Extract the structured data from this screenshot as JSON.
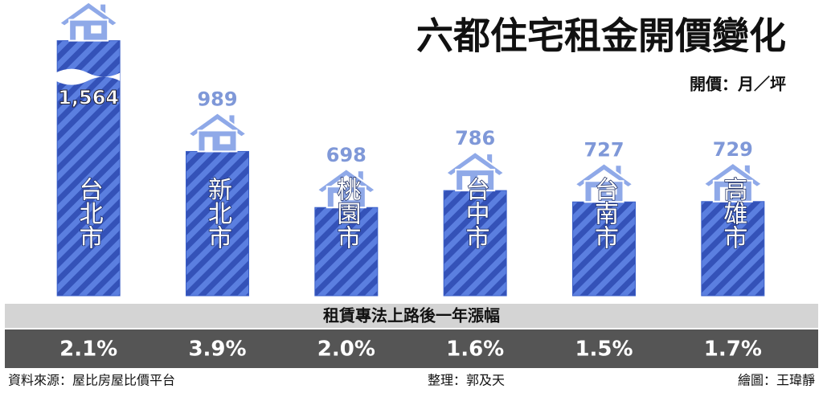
{
  "chart_data": {
    "type": "bar",
    "title": "六都住宅租金開價變化",
    "unit_note": "開價：月／坪",
    "categories": [
      "台北市",
      "新北市",
      "桃園市",
      "台中市",
      "台南市",
      "高雄市"
    ],
    "values": [
      1564,
      989,
      698,
      786,
      727,
      729
    ],
    "value_labels": [
      "1,564",
      "989",
      "698",
      "786",
      "727",
      "729"
    ],
    "color": "#3a5fc8",
    "ylim": [
      240,
      1700
    ],
    "growth": {
      "title": "租賃專法上路後一年漲幅",
      "values": [
        2.1,
        3.9,
        2.0,
        1.6,
        1.5,
        1.7
      ],
      "value_labels": [
        "2.1%",
        "3.9%",
        "2.0%",
        "1.6%",
        "1.5%",
        "1.7%"
      ]
    },
    "source": "資料來源：屋比房屋比價平台",
    "editor": "整理：郭及天",
    "illustrator": "繪圖：王瑋靜"
  }
}
